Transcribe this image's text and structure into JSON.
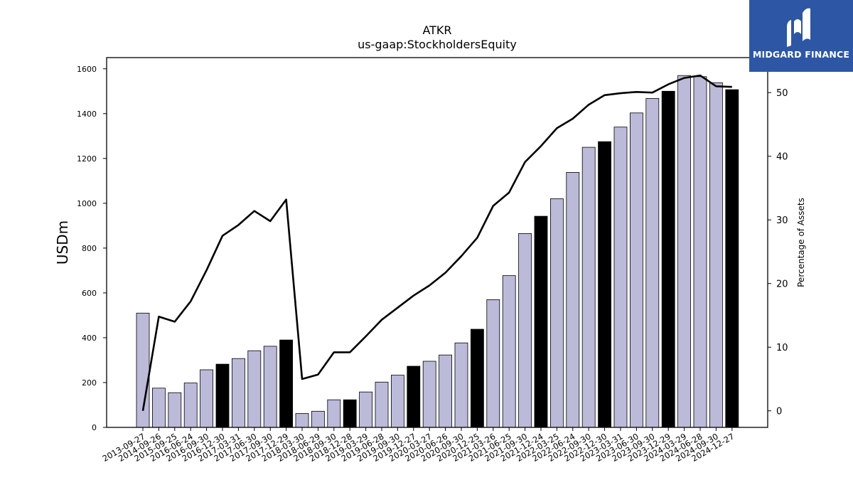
{
  "brand": {
    "name": "MIDGARD FINANCE"
  },
  "chart_data": {
    "type": "bar",
    "title": "ATKR",
    "subtitle": "us-gaap:StockholdersEquity",
    "ylabel": "USDm",
    "y2label": "Percentage of Assets",
    "ylim": [
      0,
      1650
    ],
    "y2lim": [
      -2.6,
      55.5
    ],
    "yticks": [
      0,
      200,
      400,
      600,
      800,
      1000,
      1200,
      1400,
      1600
    ],
    "y2ticks": [
      0,
      10,
      20,
      30,
      40,
      50
    ],
    "grid": false,
    "colors": {
      "bar": "#bcbad9",
      "bar_highlight": "#000000",
      "line": "#000000"
    },
    "categories": [
      "2013-09-27",
      "2014-09-26",
      "2015-09-25",
      "2016-06-24",
      "2016-09-30",
      "2016-12-30",
      "2017-03-31",
      "2017-06-30",
      "2017-09-30",
      "2017-12-29",
      "2018-03-30",
      "2018-06-29",
      "2018-09-30",
      "2018-12-28",
      "2019-03-29",
      "2019-06-28",
      "2019-09-30",
      "2019-12-27",
      "2020-03-27",
      "2020-06-26",
      "2020-09-30",
      "2020-12-25",
      "2021-03-26",
      "2021-06-25",
      "2021-09-30",
      "2021-12-24",
      "2022-03-25",
      "2022-06-24",
      "2022-09-30",
      "2022-12-30",
      "2023-03-31",
      "2023-06-30",
      "2023-09-30",
      "2023-12-29",
      "2024-03-29",
      "2024-06-28",
      "2024-09-30",
      "2024-12-27"
    ],
    "series": [
      {
        "type": "bar",
        "values": [
          510,
          175,
          155,
          198,
          257,
          282,
          307,
          342,
          362,
          390,
          62,
          72,
          123,
          123,
          158,
          202,
          233,
          273,
          295,
          323,
          377,
          438,
          570,
          677,
          865,
          942,
          1020,
          1138,
          1250,
          1275,
          1340,
          1403,
          1468,
          1500,
          1570,
          1565,
          1538,
          1507
        ],
        "highlight": [
          false,
          false,
          false,
          false,
          false,
          true,
          false,
          false,
          false,
          true,
          false,
          false,
          false,
          true,
          false,
          false,
          false,
          true,
          false,
          false,
          false,
          true,
          false,
          false,
          false,
          true,
          false,
          false,
          false,
          true,
          false,
          false,
          false,
          true,
          false,
          false,
          false,
          true
        ]
      },
      {
        "type": "line",
        "axis": "right",
        "values": [
          0,
          14.8,
          14.0,
          17.2,
          22.1,
          27.5,
          29.2,
          31.4,
          29.8,
          33.2,
          5.0,
          5.7,
          9.2,
          9.2,
          11.7,
          14.3,
          16.2,
          18.1,
          19.7,
          21.7,
          24.3,
          27.2,
          32.2,
          34.3,
          39.1,
          41.6,
          44.4,
          45.9,
          48.1,
          49.6,
          49.9,
          50.1,
          50.0,
          51.3,
          52.3,
          52.7,
          51.0,
          50.9
        ]
      }
    ]
  }
}
